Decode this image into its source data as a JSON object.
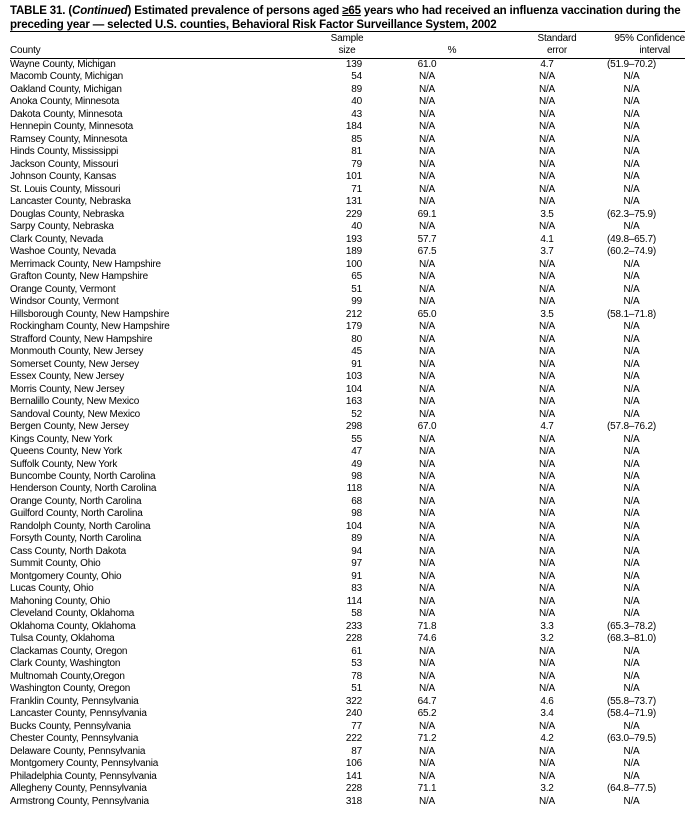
{
  "title": {
    "prefix": "TABLE 31. (",
    "continued": "Continued",
    "text1": ") Estimated prevalence of persons aged ",
    "ge65": "≥65",
    "text2": " years who had received an influenza vaccination during the preceding year — selected U.S. counties, Behavioral Risk Factor Surveillance System, 2002"
  },
  "columns": {
    "county": "County",
    "sample_line1": "Sample",
    "sample_line2": "size",
    "percent": "%",
    "se_line1": "Standard",
    "se_line2": "error",
    "ci_line1": "95% Confidence",
    "ci_line2": "interval"
  },
  "rows": [
    [
      "Wayne County, Michigan",
      "139",
      "61.0",
      "4.7",
      "(51.9–70.2)"
    ],
    [
      "Macomb County, Michigan",
      "54",
      "N/A",
      "N/A",
      "N/A"
    ],
    [
      "Oakland County, Michigan",
      "89",
      "N/A",
      "N/A",
      "N/A"
    ],
    [
      "Anoka County, Minnesota",
      "40",
      "N/A",
      "N/A",
      "N/A"
    ],
    [
      "Dakota County, Minnesota",
      "43",
      "N/A",
      "N/A",
      "N/A"
    ],
    [
      "Hennepin County, Minnesota",
      "184",
      "N/A",
      "N/A",
      "N/A"
    ],
    [
      "Ramsey County, Minnesota",
      "85",
      "N/A",
      "N/A",
      "N/A"
    ],
    [
      "Hinds County, Mississippi",
      "81",
      "N/A",
      "N/A",
      "N/A"
    ],
    [
      "Jackson County, Missouri",
      "79",
      "N/A",
      "N/A",
      "N/A"
    ],
    [
      "Johnson County, Kansas",
      "101",
      "N/A",
      "N/A",
      "N/A"
    ],
    [
      "St. Louis County, Missouri",
      "71",
      "N/A",
      "N/A",
      "N/A"
    ],
    [
      "Lancaster County, Nebraska",
      "131",
      "N/A",
      "N/A",
      "N/A"
    ],
    [
      "Douglas County, Nebraska",
      "229",
      "69.1",
      "3.5",
      "(62.3–75.9)"
    ],
    [
      "Sarpy County, Nebraska",
      "40",
      "N/A",
      "N/A",
      "N/A"
    ],
    [
      "Clark County, Nevada",
      "193",
      "57.7",
      "4.1",
      "(49.8–65.7)"
    ],
    [
      "Washoe County, Nevada",
      "189",
      "67.5",
      "3.7",
      "(60.2–74.9)"
    ],
    [
      "Merrimack County, New Hampshire",
      "100",
      "N/A",
      "N/A",
      "N/A"
    ],
    [
      "Grafton County, New Hampshire",
      "65",
      "N/A",
      "N/A",
      "N/A"
    ],
    [
      "Orange County, Vermont",
      "51",
      "N/A",
      "N/A",
      "N/A"
    ],
    [
      "Windsor County, Vermont",
      "99",
      "N/A",
      "N/A",
      "N/A"
    ],
    [
      "Hillsborough County, New Hampshire",
      "212",
      "65.0",
      "3.5",
      "(58.1–71.8)"
    ],
    [
      "Rockingham County, New Hampshire",
      "179",
      "N/A",
      "N/A",
      "N/A"
    ],
    [
      "Strafford County, New Hampshire",
      "80",
      "N/A",
      "N/A",
      "N/A"
    ],
    [
      "Monmouth County, New Jersey",
      "45",
      "N/A",
      "N/A",
      "N/A"
    ],
    [
      "Somerset County, New Jersey",
      "91",
      "N/A",
      "N/A",
      "N/A"
    ],
    [
      "Essex County, New Jersey",
      "103",
      "N/A",
      "N/A",
      "N/A"
    ],
    [
      "Morris County, New Jersey",
      "104",
      "N/A",
      "N/A",
      "N/A"
    ],
    [
      "Bernalillo County, New Mexico",
      "163",
      "N/A",
      "N/A",
      "N/A"
    ],
    [
      "Sandoval County, New Mexico",
      "52",
      "N/A",
      "N/A",
      "N/A"
    ],
    [
      "Bergen County, New Jersey",
      "298",
      "67.0",
      "4.7",
      "(57.8–76.2)"
    ],
    [
      "Kings County, New York",
      "55",
      "N/A",
      "N/A",
      "N/A"
    ],
    [
      "Queens County, New York",
      "47",
      "N/A",
      "N/A",
      "N/A"
    ],
    [
      "Suffolk County, New York",
      "49",
      "N/A",
      "N/A",
      "N/A"
    ],
    [
      "Buncombe County, North Carolina",
      "98",
      "N/A",
      "N/A",
      "N/A"
    ],
    [
      "Henderson County, North Carolina",
      "118",
      "N/A",
      "N/A",
      "N/A"
    ],
    [
      "Orange County, North Carolina",
      "68",
      "N/A",
      "N/A",
      "N/A"
    ],
    [
      "Guilford County, North Carolina",
      "98",
      "N/A",
      "N/A",
      "N/A"
    ],
    [
      "Randolph County, North Carolina",
      "104",
      "N/A",
      "N/A",
      "N/A"
    ],
    [
      "Forsyth County, North Carolina",
      "89",
      "N/A",
      "N/A",
      "N/A"
    ],
    [
      "Cass County, North Dakota",
      "94",
      "N/A",
      "N/A",
      "N/A"
    ],
    [
      "Summit County, Ohio",
      "97",
      "N/A",
      "N/A",
      "N/A"
    ],
    [
      "Montgomery County, Ohio",
      "91",
      "N/A",
      "N/A",
      "N/A"
    ],
    [
      "Lucas County, Ohio",
      "83",
      "N/A",
      "N/A",
      "N/A"
    ],
    [
      "Mahoning County, Ohio",
      "114",
      "N/A",
      "N/A",
      "N/A"
    ],
    [
      "Cleveland County, Oklahoma",
      "58",
      "N/A",
      "N/A",
      "N/A"
    ],
    [
      "Oklahoma County, Oklahoma",
      "233",
      "71.8",
      "3.3",
      "(65.3–78.2)"
    ],
    [
      "Tulsa County, Oklahoma",
      "228",
      "74.6",
      "3.2",
      "(68.3–81.0)"
    ],
    [
      "Clackamas County, Oregon",
      "61",
      "N/A",
      "N/A",
      "N/A"
    ],
    [
      "Clark County, Washington",
      "53",
      "N/A",
      "N/A",
      "N/A"
    ],
    [
      "Multnomah County,Oregon",
      "78",
      "N/A",
      "N/A",
      "N/A"
    ],
    [
      "Washington County, Oregon",
      "51",
      "N/A",
      "N/A",
      "N/A"
    ],
    [
      "Franklin County, Pennsylvania",
      "322",
      "64.7",
      "4.6",
      "(55.8–73.7)"
    ],
    [
      "Lancaster County, Pennsylvania",
      "240",
      "65.2",
      "3.4",
      "(58.4–71.9)"
    ],
    [
      "Bucks County, Pennsylvania",
      "77",
      "N/A",
      "N/A",
      "N/A"
    ],
    [
      "Chester County, Pennsylvania",
      "222",
      "71.2",
      "4.2",
      "(63.0–79.5)"
    ],
    [
      "Delaware County, Pennsylvania",
      "87",
      "N/A",
      "N/A",
      "N/A"
    ],
    [
      "Montgomery County, Pennsylvania",
      "106",
      "N/A",
      "N/A",
      "N/A"
    ],
    [
      "Philadelphia County, Pennsylvania",
      "141",
      "N/A",
      "N/A",
      "N/A"
    ],
    [
      "Allegheny County, Pennsylvania",
      "228",
      "71.1",
      "3.2",
      "(64.8–77.5)"
    ],
    [
      "Armstrong County, Pennsylvania",
      "318",
      "N/A",
      "N/A",
      "N/A"
    ]
  ]
}
